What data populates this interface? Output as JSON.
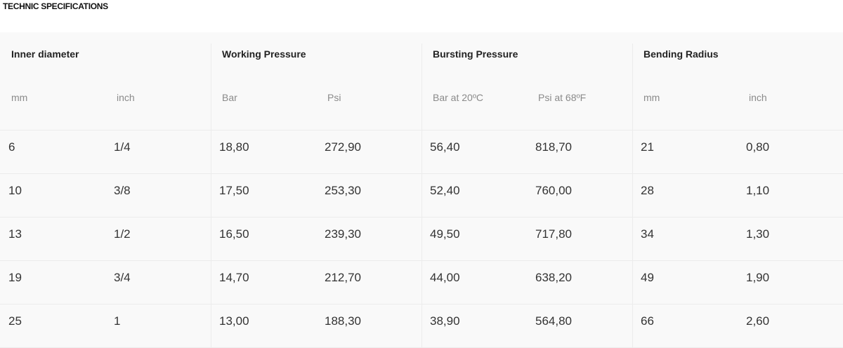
{
  "page": {
    "title": "TECHNIC SPECIFICATIONS"
  },
  "table": {
    "groups": [
      {
        "label": "Inner diameter",
        "sub": [
          "mm",
          "inch"
        ]
      },
      {
        "label": "Working Pressure",
        "sub": [
          "Bar",
          "Psi"
        ]
      },
      {
        "label": "Bursting Pressure",
        "sub": [
          "Bar at 20ºC",
          "Psi at 68ºF"
        ]
      },
      {
        "label": "Bending Radius",
        "sub": [
          "mm",
          "inch"
        ]
      }
    ],
    "rows": [
      [
        "6",
        "1/4",
        "18,80",
        "272,90",
        "56,40",
        "818,70",
        "21",
        "0,80"
      ],
      [
        "10",
        "3/8",
        "17,50",
        "253,30",
        "52,40",
        "760,00",
        "28",
        "1,10"
      ],
      [
        "13",
        "1/2",
        "16,50",
        "239,30",
        "49,50",
        "717,80",
        "34",
        "1,30"
      ],
      [
        "19",
        "3/4",
        "14,70",
        "212,70",
        "44,00",
        "638,20",
        "49",
        "1,90"
      ],
      [
        "25",
        "1",
        "13,00",
        "188,30",
        "38,90",
        "564,80",
        "66",
        "2,60"
      ]
    ]
  },
  "colors": {
    "table_background": "#f9f9f9",
    "grid_line": "#ececec",
    "header_text": "#222222",
    "subheader_text": "#8a8a8a",
    "cell_text": "#333333"
  }
}
